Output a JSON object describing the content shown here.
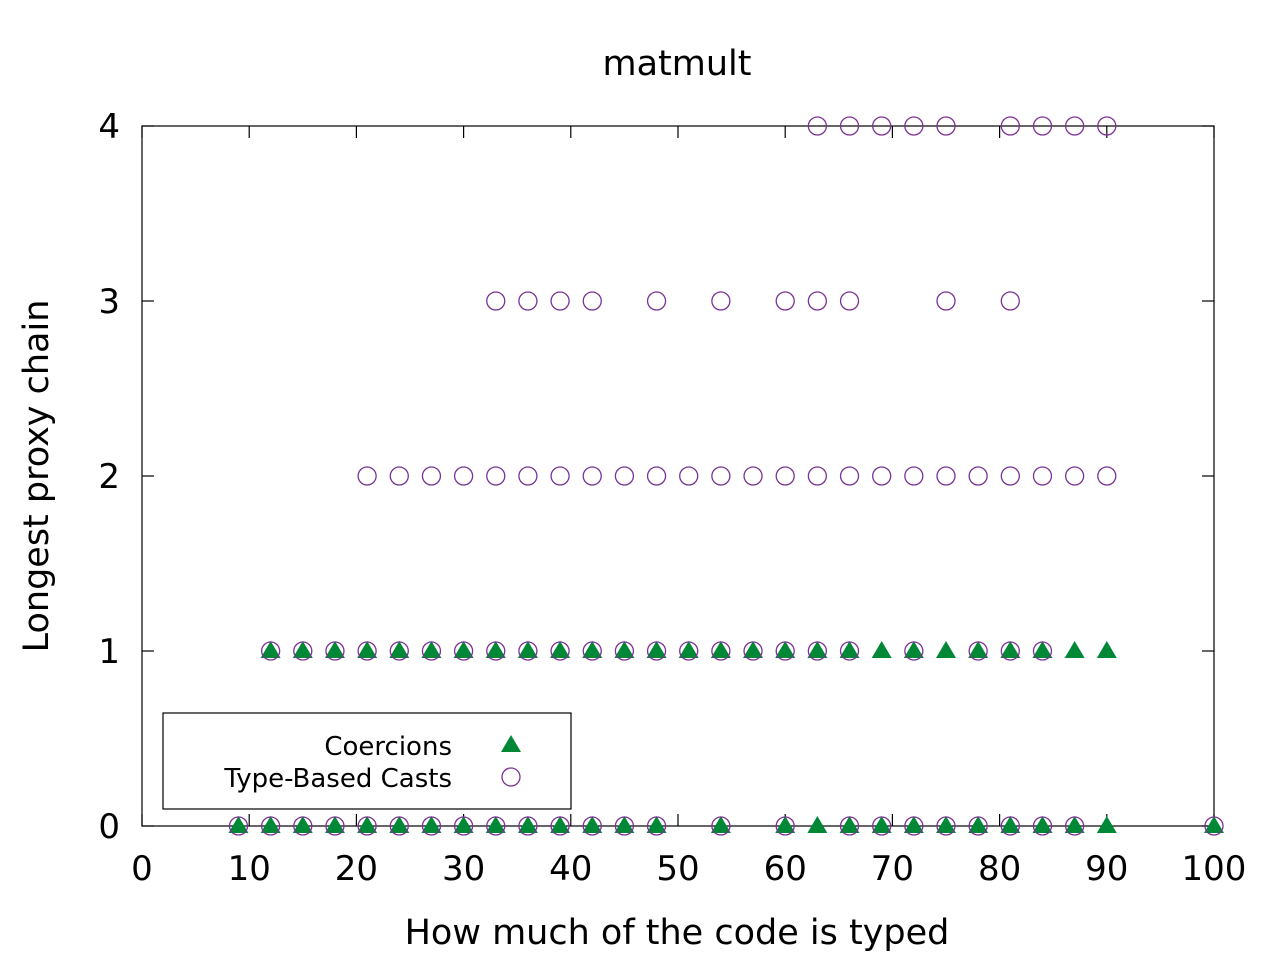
{
  "chart_data": {
    "type": "scatter",
    "title": "matmult",
    "xlabel": "How much of the code is typed",
    "ylabel": "Longest proxy chain",
    "xlim": [
      0,
      100
    ],
    "ylim": [
      0,
      4
    ],
    "x_ticks": [
      0,
      10,
      20,
      30,
      40,
      50,
      60,
      70,
      80,
      90,
      100
    ],
    "y_ticks": [
      0,
      1,
      2,
      3,
      4
    ],
    "grid": false,
    "legend_position": "bottom-left",
    "series": [
      {
        "name": "Coercions",
        "marker": "filled-triangle",
        "color": "#008837",
        "points": [
          [
            9,
            0
          ],
          [
            12,
            0
          ],
          [
            15,
            0
          ],
          [
            18,
            0
          ],
          [
            21,
            0
          ],
          [
            24,
            0
          ],
          [
            27,
            0
          ],
          [
            30,
            0
          ],
          [
            33,
            0
          ],
          [
            36,
            0
          ],
          [
            39,
            0
          ],
          [
            42,
            0
          ],
          [
            45,
            0
          ],
          [
            48,
            0
          ],
          [
            54,
            0
          ],
          [
            60,
            0
          ],
          [
            63,
            0
          ],
          [
            66,
            0
          ],
          [
            69,
            0
          ],
          [
            72,
            0
          ],
          [
            75,
            0
          ],
          [
            78,
            0
          ],
          [
            81,
            0
          ],
          [
            84,
            0
          ],
          [
            87,
            0
          ],
          [
            90,
            0
          ],
          [
            100,
            0
          ],
          [
            12,
            1
          ],
          [
            15,
            1
          ],
          [
            18,
            1
          ],
          [
            21,
            1
          ],
          [
            24,
            1
          ],
          [
            27,
            1
          ],
          [
            30,
            1
          ],
          [
            33,
            1
          ],
          [
            36,
            1
          ],
          [
            39,
            1
          ],
          [
            42,
            1
          ],
          [
            45,
            1
          ],
          [
            48,
            1
          ],
          [
            51,
            1
          ],
          [
            54,
            1
          ],
          [
            57,
            1
          ],
          [
            60,
            1
          ],
          [
            63,
            1
          ],
          [
            66,
            1
          ],
          [
            69,
            1
          ],
          [
            72,
            1
          ],
          [
            75,
            1
          ],
          [
            78,
            1
          ],
          [
            81,
            1
          ],
          [
            84,
            1
          ],
          [
            87,
            1
          ],
          [
            90,
            1
          ]
        ]
      },
      {
        "name": "Type-Based Casts",
        "marker": "open-circle",
        "color": "#7b3294",
        "points": [
          [
            9,
            0
          ],
          [
            12,
            0
          ],
          [
            15,
            0
          ],
          [
            18,
            0
          ],
          [
            21,
            0
          ],
          [
            24,
            0
          ],
          [
            27,
            0
          ],
          [
            30,
            0
          ],
          [
            33,
            0
          ],
          [
            36,
            0
          ],
          [
            39,
            0
          ],
          [
            42,
            0
          ],
          [
            45,
            0
          ],
          [
            48,
            0
          ],
          [
            54,
            0
          ],
          [
            60,
            0
          ],
          [
            66,
            0
          ],
          [
            69,
            0
          ],
          [
            72,
            0
          ],
          [
            75,
            0
          ],
          [
            78,
            0
          ],
          [
            81,
            0
          ],
          [
            84,
            0
          ],
          [
            87,
            0
          ],
          [
            100,
            0
          ],
          [
            12,
            1
          ],
          [
            15,
            1
          ],
          [
            18,
            1
          ],
          [
            21,
            1
          ],
          [
            24,
            1
          ],
          [
            27,
            1
          ],
          [
            30,
            1
          ],
          [
            33,
            1
          ],
          [
            36,
            1
          ],
          [
            39,
            1
          ],
          [
            42,
            1
          ],
          [
            45,
            1
          ],
          [
            48,
            1
          ],
          [
            51,
            1
          ],
          [
            54,
            1
          ],
          [
            57,
            1
          ],
          [
            60,
            1
          ],
          [
            63,
            1
          ],
          [
            66,
            1
          ],
          [
            72,
            1
          ],
          [
            78,
            1
          ],
          [
            81,
            1
          ],
          [
            84,
            1
          ],
          [
            21,
            2
          ],
          [
            24,
            2
          ],
          [
            27,
            2
          ],
          [
            30,
            2
          ],
          [
            33,
            2
          ],
          [
            36,
            2
          ],
          [
            39,
            2
          ],
          [
            42,
            2
          ],
          [
            45,
            2
          ],
          [
            48,
            2
          ],
          [
            51,
            2
          ],
          [
            54,
            2
          ],
          [
            57,
            2
          ],
          [
            60,
            2
          ],
          [
            63,
            2
          ],
          [
            66,
            2
          ],
          [
            69,
            2
          ],
          [
            72,
            2
          ],
          [
            75,
            2
          ],
          [
            78,
            2
          ],
          [
            81,
            2
          ],
          [
            84,
            2
          ],
          [
            87,
            2
          ],
          [
            90,
            2
          ],
          [
            33,
            3
          ],
          [
            36,
            3
          ],
          [
            39,
            3
          ],
          [
            42,
            3
          ],
          [
            48,
            3
          ],
          [
            54,
            3
          ],
          [
            60,
            3
          ],
          [
            63,
            3
          ],
          [
            66,
            3
          ],
          [
            75,
            3
          ],
          [
            81,
            3
          ],
          [
            63,
            4
          ],
          [
            66,
            4
          ],
          [
            69,
            4
          ],
          [
            72,
            4
          ],
          [
            75,
            4
          ],
          [
            81,
            4
          ],
          [
            84,
            4
          ],
          [
            87,
            4
          ],
          [
            90,
            4
          ]
        ]
      }
    ]
  }
}
